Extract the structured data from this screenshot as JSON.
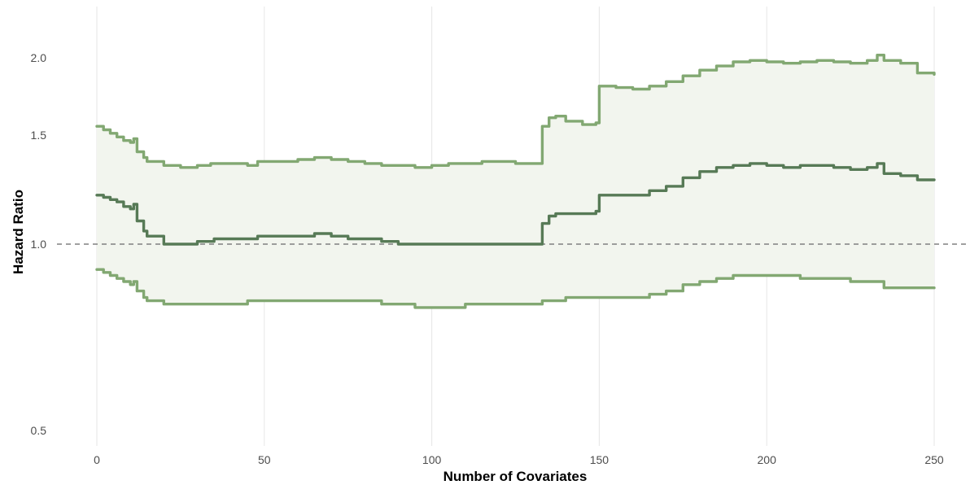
{
  "chart_data": {
    "type": "line",
    "title": "",
    "xlabel": "Number of Covariates",
    "ylabel": "Hazard Ratio",
    "x_ticks": [
      0,
      50,
      100,
      150,
      200,
      250
    ],
    "x_tick_labels": [
      "0",
      "50",
      "100",
      "150",
      "200",
      "250"
    ],
    "y_scale": "log",
    "y_ticks": [
      0.5,
      1.0,
      1.5,
      2.0
    ],
    "y_tick_labels": [
      "0.5",
      "1.0",
      "1.5",
      "2.0"
    ],
    "xlim": [
      0,
      250
    ],
    "ylim": [
      0.47,
      2.3
    ],
    "reference_line": 1.0,
    "grid": "vertical major lines",
    "legend": "none",
    "colors": {
      "estimate": "#577a56",
      "ci_bound": "#82a872",
      "ribbon": "#f2f5ee",
      "reference": "#808080",
      "grid": "#e6e6e6"
    },
    "series": [
      {
        "role": "upper_ci",
        "points": [
          [
            0,
            1.55
          ],
          [
            2,
            1.53
          ],
          [
            4,
            1.51
          ],
          [
            6,
            1.49
          ],
          [
            8,
            1.47
          ],
          [
            10,
            1.46
          ],
          [
            11,
            1.48
          ],
          [
            12,
            1.41
          ],
          [
            14,
            1.38
          ],
          [
            15,
            1.36
          ],
          [
            20,
            1.34
          ],
          [
            25,
            1.33
          ],
          [
            30,
            1.34
          ],
          [
            34,
            1.35
          ],
          [
            40,
            1.35
          ],
          [
            45,
            1.34
          ],
          [
            48,
            1.36
          ],
          [
            60,
            1.37
          ],
          [
            65,
            1.38
          ],
          [
            70,
            1.37
          ],
          [
            75,
            1.36
          ],
          [
            80,
            1.35
          ],
          [
            85,
            1.34
          ],
          [
            90,
            1.34
          ],
          [
            95,
            1.33
          ],
          [
            100,
            1.34
          ],
          [
            105,
            1.35
          ],
          [
            110,
            1.35
          ],
          [
            115,
            1.36
          ],
          [
            120,
            1.36
          ],
          [
            125,
            1.35
          ],
          [
            130,
            1.35
          ],
          [
            132,
            1.35
          ],
          [
            133,
            1.55
          ],
          [
            135,
            1.6
          ],
          [
            137,
            1.61
          ],
          [
            140,
            1.58
          ],
          [
            145,
            1.56
          ],
          [
            149,
            1.57
          ],
          [
            150,
            1.8
          ],
          [
            155,
            1.79
          ],
          [
            160,
            1.78
          ],
          [
            165,
            1.8
          ],
          [
            170,
            1.83
          ],
          [
            175,
            1.87
          ],
          [
            180,
            1.91
          ],
          [
            185,
            1.94
          ],
          [
            190,
            1.97
          ],
          [
            195,
            1.98
          ],
          [
            200,
            1.97
          ],
          [
            205,
            1.96
          ],
          [
            210,
            1.97
          ],
          [
            215,
            1.98
          ],
          [
            220,
            1.97
          ],
          [
            225,
            1.96
          ],
          [
            230,
            1.98
          ],
          [
            233,
            2.02
          ],
          [
            235,
            1.98
          ],
          [
            240,
            1.96
          ],
          [
            245,
            1.89
          ],
          [
            250,
            1.88
          ]
        ]
      },
      {
        "role": "estimate",
        "points": [
          [
            0,
            1.2
          ],
          [
            2,
            1.19
          ],
          [
            4,
            1.18
          ],
          [
            6,
            1.17
          ],
          [
            8,
            1.15
          ],
          [
            10,
            1.14
          ],
          [
            11,
            1.16
          ],
          [
            12,
            1.09
          ],
          [
            14,
            1.05
          ],
          [
            15,
            1.03
          ],
          [
            20,
            1.0
          ],
          [
            25,
            1.0
          ],
          [
            30,
            1.01
          ],
          [
            35,
            1.02
          ],
          [
            40,
            1.02
          ],
          [
            45,
            1.02
          ],
          [
            48,
            1.03
          ],
          [
            60,
            1.03
          ],
          [
            65,
            1.04
          ],
          [
            70,
            1.03
          ],
          [
            75,
            1.02
          ],
          [
            80,
            1.02
          ],
          [
            85,
            1.01
          ],
          [
            90,
            1.0
          ],
          [
            95,
            1.0
          ],
          [
            100,
            1.0
          ],
          [
            105,
            1.0
          ],
          [
            110,
            1.0
          ],
          [
            115,
            1.0
          ],
          [
            120,
            1.0
          ],
          [
            125,
            1.0
          ],
          [
            130,
            1.0
          ],
          [
            132,
            1.0
          ],
          [
            133,
            1.08
          ],
          [
            135,
            1.11
          ],
          [
            137,
            1.12
          ],
          [
            140,
            1.12
          ],
          [
            145,
            1.12
          ],
          [
            149,
            1.13
          ],
          [
            150,
            1.2
          ],
          [
            155,
            1.2
          ],
          [
            160,
            1.2
          ],
          [
            165,
            1.22
          ],
          [
            170,
            1.24
          ],
          [
            175,
            1.28
          ],
          [
            180,
            1.31
          ],
          [
            185,
            1.33
          ],
          [
            190,
            1.34
          ],
          [
            195,
            1.35
          ],
          [
            200,
            1.34
          ],
          [
            205,
            1.33
          ],
          [
            210,
            1.34
          ],
          [
            215,
            1.34
          ],
          [
            220,
            1.33
          ],
          [
            225,
            1.32
          ],
          [
            230,
            1.33
          ],
          [
            233,
            1.35
          ],
          [
            235,
            1.3
          ],
          [
            240,
            1.29
          ],
          [
            245,
            1.27
          ],
          [
            250,
            1.27
          ]
        ]
      },
      {
        "role": "lower_ci",
        "points": [
          [
            0,
            0.91
          ],
          [
            2,
            0.9
          ],
          [
            4,
            0.89
          ],
          [
            6,
            0.88
          ],
          [
            8,
            0.87
          ],
          [
            10,
            0.86
          ],
          [
            11,
            0.87
          ],
          [
            12,
            0.84
          ],
          [
            14,
            0.82
          ],
          [
            15,
            0.81
          ],
          [
            20,
            0.8
          ],
          [
            25,
            0.8
          ],
          [
            30,
            0.8
          ],
          [
            35,
            0.8
          ],
          [
            40,
            0.8
          ],
          [
            45,
            0.81
          ],
          [
            48,
            0.81
          ],
          [
            60,
            0.81
          ],
          [
            65,
            0.81
          ],
          [
            70,
            0.81
          ],
          [
            75,
            0.81
          ],
          [
            80,
            0.81
          ],
          [
            85,
            0.8
          ],
          [
            90,
            0.8
          ],
          [
            95,
            0.79
          ],
          [
            100,
            0.79
          ],
          [
            105,
            0.79
          ],
          [
            110,
            0.8
          ],
          [
            115,
            0.8
          ],
          [
            120,
            0.8
          ],
          [
            125,
            0.8
          ],
          [
            130,
            0.8
          ],
          [
            132,
            0.8
          ],
          [
            133,
            0.81
          ],
          [
            135,
            0.81
          ],
          [
            137,
            0.81
          ],
          [
            140,
            0.82
          ],
          [
            145,
            0.82
          ],
          [
            149,
            0.82
          ],
          [
            150,
            0.82
          ],
          [
            155,
            0.82
          ],
          [
            160,
            0.82
          ],
          [
            165,
            0.83
          ],
          [
            170,
            0.84
          ],
          [
            175,
            0.86
          ],
          [
            180,
            0.87
          ],
          [
            185,
            0.88
          ],
          [
            190,
            0.89
          ],
          [
            195,
            0.89
          ],
          [
            200,
            0.89
          ],
          [
            205,
            0.89
          ],
          [
            210,
            0.88
          ],
          [
            215,
            0.88
          ],
          [
            220,
            0.88
          ],
          [
            225,
            0.87
          ],
          [
            230,
            0.87
          ],
          [
            233,
            0.87
          ],
          [
            235,
            0.85
          ],
          [
            240,
            0.85
          ],
          [
            245,
            0.85
          ],
          [
            250,
            0.85
          ]
        ]
      }
    ]
  }
}
